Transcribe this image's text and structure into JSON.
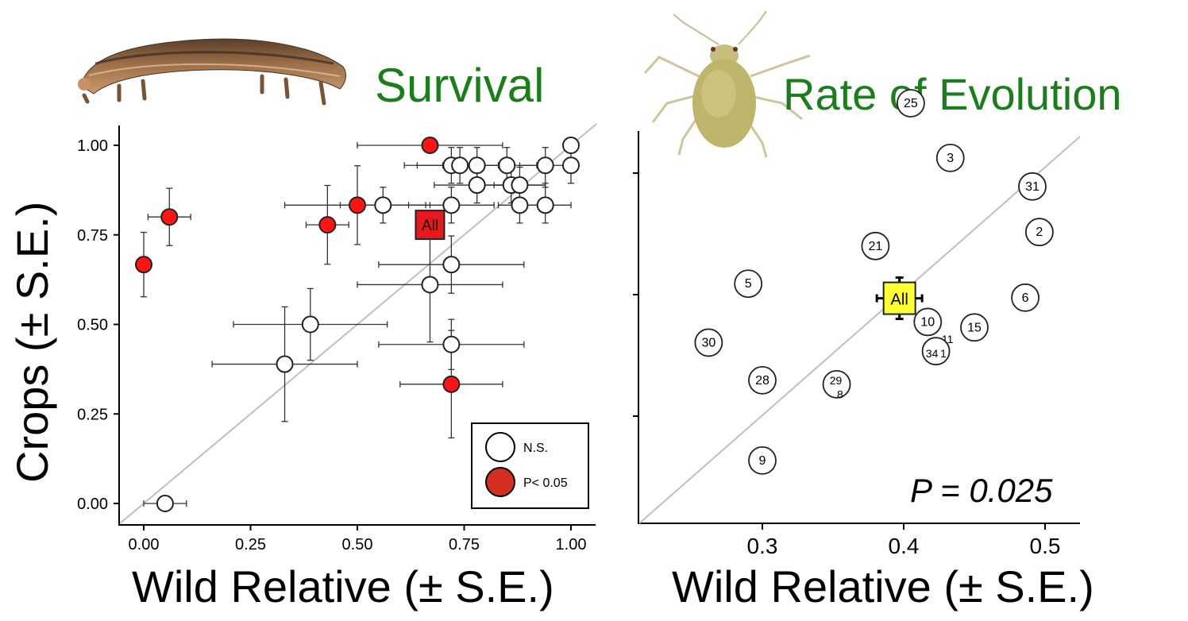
{
  "figure": {
    "left_title": "Survival",
    "right_title": "Rate of Evolution",
    "icons": [
      "caterpillar-image",
      "aphid-image"
    ]
  },
  "chart_data": [
    {
      "type": "scatter",
      "title": "Survival",
      "xlabel": "Wild Relative (± S.E.)",
      "ylabel": "Crops (± S.E.)",
      "xlim": [
        -0.04,
        1.04
      ],
      "ylim": [
        -0.05,
        1.06
      ],
      "x_ticks": [
        "0.00",
        "0.25",
        "0.50",
        "0.75",
        "1.00"
      ],
      "y_ticks": [
        "0.00",
        "0.25",
        "0.50",
        "0.75",
        "1.00"
      ],
      "diagonal": true,
      "legend": {
        "position": "bottom-right",
        "entries": [
          {
            "label": "N.S.",
            "color": "#ffffff"
          },
          {
            "label": "P< 0.05",
            "color": "#d32f20"
          }
        ]
      },
      "series": [
        {
          "name": "N.S.",
          "color": "#ffffff",
          "points": [
            {
              "x": 1.0,
              "y": 1.0,
              "ex": 0,
              "ey": 0
            },
            {
              "x": 1.0,
              "y": 0.944,
              "ex": 0,
              "ey": 0.05
            },
            {
              "x": 0.72,
              "y": 0.944,
              "ex": 0.11,
              "ey": 0.05
            },
            {
              "x": 0.74,
              "y": 0.944,
              "ex": 0.1,
              "ey": 0.05
            },
            {
              "x": 0.78,
              "y": 0.944,
              "ex": 0.08,
              "ey": 0.05
            },
            {
              "x": 0.85,
              "y": 0.944,
              "ex": 0.07,
              "ey": 0.05
            },
            {
              "x": 0.94,
              "y": 0.944,
              "ex": 0.06,
              "ey": 0.05
            },
            {
              "x": 0.78,
              "y": 0.889,
              "ex": 0.1,
              "ey": 0.05
            },
            {
              "x": 0.86,
              "y": 0.889,
              "ex": 0.08,
              "ey": 0.05
            },
            {
              "x": 0.88,
              "y": 0.889,
              "ex": 0.06,
              "ey": 0.05
            },
            {
              "x": 0.88,
              "y": 0.833,
              "ex": 0.05,
              "ey": 0.05
            },
            {
              "x": 0.94,
              "y": 0.833,
              "ex": 0.06,
              "ey": 0.05
            },
            {
              "x": 0.56,
              "y": 0.833,
              "ex": 0.1,
              "ey": 0.05
            },
            {
              "x": 0.72,
              "y": 0.833,
              "ex": 0.1,
              "ey": 0.05
            },
            {
              "x": 0.72,
              "y": 0.667,
              "ex": 0.17,
              "ey": 0.08
            },
            {
              "x": 0.67,
              "y": 0.611,
              "ex": 0.17,
              "ey": 0.16
            },
            {
              "x": 0.39,
              "y": 0.5,
              "ex": 0.18,
              "ey": 0.1
            },
            {
              "x": 0.33,
              "y": 0.389,
              "ex": 0.17,
              "ey": 0.16
            },
            {
              "x": 0.72,
              "y": 0.444,
              "ex": 0.17,
              "ey": 0.07
            },
            {
              "x": 0.05,
              "y": 0.0,
              "ex": 0.05,
              "ey": 0
            }
          ]
        },
        {
          "name": "P< 0.05",
          "color": "#ff1414",
          "points": [
            {
              "x": 0.67,
              "y": 1.0,
              "ex": 0.17,
              "ey": 0
            },
            {
              "x": 0.5,
              "y": 0.833,
              "ex": 0.17,
              "ey": 0.11
            },
            {
              "x": 0.43,
              "y": 0.778,
              "ex": 0.05,
              "ey": 0.11
            },
            {
              "x": 0.06,
              "y": 0.8,
              "ex": 0.05,
              "ey": 0.08
            },
            {
              "x": 0.0,
              "y": 0.667,
              "ex": 0,
              "ey": 0.09
            },
            {
              "x": 0.72,
              "y": 0.333,
              "ex": 0.12,
              "ey": 0.15
            }
          ]
        }
      ],
      "summary_point": {
        "label": "All",
        "x": 0.67,
        "y": 0.778,
        "ex": 0.03,
        "ey": 0.02,
        "color": "#e8181c"
      }
    },
    {
      "type": "scatter",
      "title": "Rate of Evolution",
      "xlabel": "Wild Relative (± S.E.)",
      "ylabel": "",
      "xlim": [
        0.215,
        0.53
      ],
      "ylim": [
        0.22,
        0.6
      ],
      "x_ticks": [
        "0.3",
        "0.4",
        "0.5"
      ],
      "diagonal": true,
      "annotation": "P = 0.025",
      "points": [
        {
          "label": "25",
          "x": 0.405,
          "y": 0.5575
        },
        {
          "label": "3",
          "x": 0.433,
          "y": 0.5125
        },
        {
          "label": "31",
          "x": 0.491,
          "y": 0.489
        },
        {
          "label": "2",
          "x": 0.496,
          "y": 0.4515
        },
        {
          "label": "21",
          "x": 0.38,
          "y": 0.44
        },
        {
          "label": "5",
          "x": 0.29,
          "y": 0.409
        },
        {
          "label": "6",
          "x": 0.486,
          "y": 0.3975
        },
        {
          "label": "10",
          "x": 0.417,
          "y": 0.3775
        },
        {
          "label": "15",
          "x": 0.45,
          "y": 0.373
        },
        {
          "label": "11",
          "x": 0.431,
          "y": 0.3635
        },
        {
          "label": "34",
          "x": 0.42,
          "y": 0.3515
        },
        {
          "label": "1",
          "x": 0.428,
          "y": 0.3515
        },
        {
          "label": "30",
          "x": 0.262,
          "y": 0.3605
        },
        {
          "label": "28",
          "x": 0.3,
          "y": 0.3295
        },
        {
          "label": "29",
          "x": 0.352,
          "y": 0.3295
        },
        {
          "label": "8",
          "x": 0.355,
          "y": 0.318
        },
        {
          "label": "9",
          "x": 0.3,
          "y": 0.2635
        }
      ],
      "summary_point": {
        "label": "All",
        "x": 0.397,
        "y": 0.397,
        "ex": 0.016,
        "ey": 0.017,
        "color": "#ffff33"
      }
    }
  ]
}
